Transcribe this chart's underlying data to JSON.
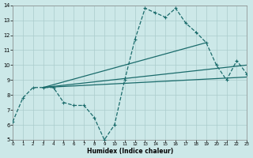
{
  "bg_color": "#cce8e8",
  "grid_color": "#aacccc",
  "line_color": "#1a6b6b",
  "xlabel": "Humidex (Indice chaleur)",
  "xlim": [
    0,
    23
  ],
  "ylim": [
    5,
    14
  ],
  "xticks": [
    0,
    1,
    2,
    3,
    4,
    5,
    6,
    7,
    8,
    9,
    10,
    11,
    12,
    13,
    14,
    15,
    16,
    17,
    18,
    19,
    20,
    21,
    22,
    23
  ],
  "yticks": [
    5,
    6,
    7,
    8,
    9,
    10,
    11,
    12,
    13,
    14
  ],
  "curve_x": [
    0,
    1,
    2,
    3,
    4,
    5,
    6,
    7,
    8,
    9,
    10,
    11,
    12,
    13,
    14,
    15,
    16,
    17,
    18,
    19,
    20,
    21,
    22,
    23
  ],
  "curve_y": [
    6.2,
    7.8,
    8.5,
    8.5,
    8.5,
    7.5,
    7.3,
    7.3,
    6.5,
    5.0,
    6.0,
    9.0,
    11.7,
    13.8,
    13.5,
    13.2,
    13.8,
    12.8,
    12.2,
    11.5,
    10.0,
    9.0,
    10.3,
    9.4
  ],
  "line1": {
    "x": [
      3,
      19
    ],
    "y": [
      8.5,
      11.5
    ]
  },
  "line2": {
    "x": [
      3,
      23
    ],
    "y": [
      8.5,
      10.0
    ]
  },
  "line3": {
    "x": [
      3,
      23
    ],
    "y": [
      8.5,
      9.2
    ]
  }
}
